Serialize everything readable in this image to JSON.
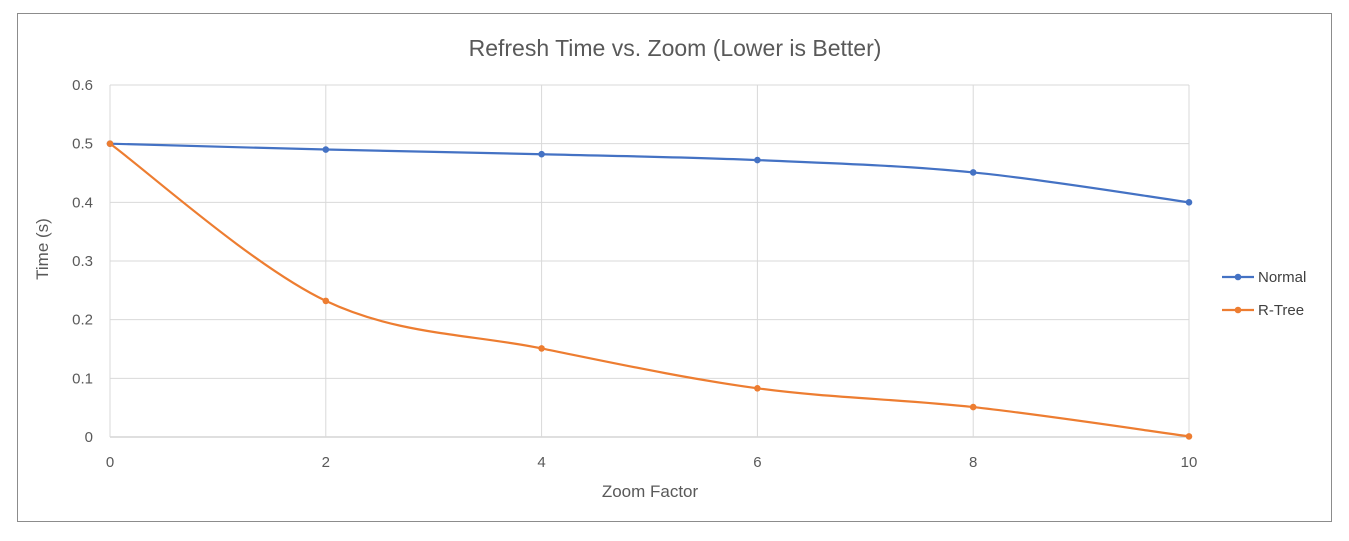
{
  "chart_data": {
    "type": "line",
    "title": "Refresh Time vs. Zoom (Lower is Better)",
    "xlabel": "Zoom Factor",
    "ylabel": "Time (s)",
    "x": [
      0,
      2,
      4,
      6,
      8,
      10
    ],
    "xticks": [
      "0",
      "2",
      "4",
      "6",
      "8",
      "10"
    ],
    "yticks": [
      "0",
      "0.1",
      "0.2",
      "0.3",
      "0.4",
      "0.5",
      "0.6"
    ],
    "xlim": [
      0,
      10
    ],
    "ylim": [
      0,
      0.6
    ],
    "grid": true,
    "smooth": true,
    "legend_position": "right",
    "series": [
      {
        "name": "Normal",
        "color": "#4472C4",
        "values": [
          0.5,
          0.49,
          0.482,
          0.472,
          0.451,
          0.4
        ]
      },
      {
        "name": "R-Tree",
        "color": "#ED7D31",
        "values": [
          0.5,
          0.232,
          0.151,
          0.083,
          0.051,
          0.001
        ]
      }
    ]
  }
}
